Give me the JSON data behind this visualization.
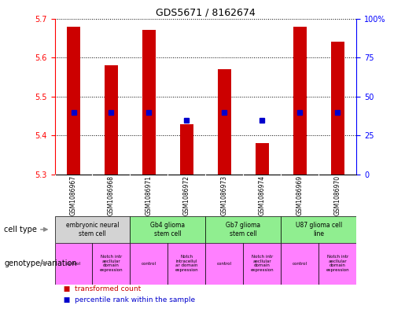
{
  "title": "GDS5671 / 8162674",
  "samples": [
    "GSM1086967",
    "GSM1086968",
    "GSM1086971",
    "GSM1086972",
    "GSM1086973",
    "GSM1086974",
    "GSM1086969",
    "GSM1086970"
  ],
  "transformed_counts": [
    5.68,
    5.58,
    5.67,
    5.43,
    5.57,
    5.38,
    5.68,
    5.64
  ],
  "percentile_ranks": [
    40,
    40,
    40,
    35,
    40,
    35,
    40,
    40
  ],
  "ylim_left": [
    5.3,
    5.7
  ],
  "ylim_right": [
    0,
    100
  ],
  "yticks_left": [
    5.3,
    5.4,
    5.5,
    5.6,
    5.7
  ],
  "yticks_right": [
    0,
    25,
    50,
    75,
    100
  ],
  "bar_color": "#cc0000",
  "dot_color": "#0000cc",
  "bar_bottom": 5.3,
  "cell_types": [
    {
      "label": "embryonic neural\nstem cell",
      "start": 0,
      "end": 2,
      "color": "#d3d3d3"
    },
    {
      "label": "Gb4 glioma\nstem cell",
      "start": 2,
      "end": 4,
      "color": "#90ee90"
    },
    {
      "label": "Gb7 glioma\nstem cell",
      "start": 4,
      "end": 6,
      "color": "#90ee90"
    },
    {
      "label": "U87 glioma cell\nline",
      "start": 6,
      "end": 8,
      "color": "#90ee90"
    }
  ],
  "genotype_variations": [
    {
      "label": "control",
      "start": 0,
      "end": 1,
      "color": "#ff80ff"
    },
    {
      "label": "Notch intr\naecllular\ndomain\nexpression",
      "start": 1,
      "end": 2,
      "color": "#ff80ff"
    },
    {
      "label": "control",
      "start": 2,
      "end": 3,
      "color": "#ff80ff"
    },
    {
      "label": "Notch\nintracellul\nar domain\nexpression",
      "start": 3,
      "end": 4,
      "color": "#ff80ff"
    },
    {
      "label": "control",
      "start": 4,
      "end": 5,
      "color": "#ff80ff"
    },
    {
      "label": "Notch intr\naecllular\ndomain\nexpression",
      "start": 5,
      "end": 6,
      "color": "#ff80ff"
    },
    {
      "label": "control",
      "start": 6,
      "end": 7,
      "color": "#ff80ff"
    },
    {
      "label": "Notch intr\naecllular\ndomain\nexpression",
      "start": 7,
      "end": 8,
      "color": "#ff80ff"
    }
  ],
  "legend_bar_label": "transformed count",
  "legend_dot_label": "percentile rank within the sample",
  "cell_type_label": "cell type",
  "genotype_label": "genotype/variation",
  "background_color": "#ffffff",
  "plot_bg_color": "#ffffff",
  "sample_row_color": "#d3d3d3"
}
